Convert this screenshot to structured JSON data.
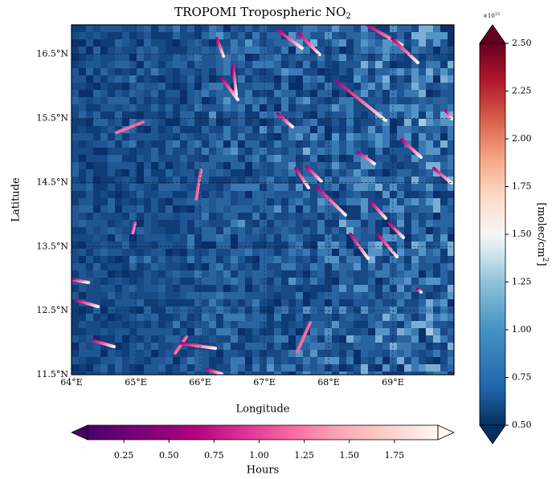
{
  "chart_data": {
    "type": "map",
    "title": {
      "text": "TROPOMI Tropospheric NO",
      "sub": "2"
    },
    "x_label": "Longitude",
    "y_label": "Latitude",
    "xlim": [
      64,
      69.95
    ],
    "ylim": [
      11.5,
      16.96
    ],
    "xticks": [
      {
        "value": 64,
        "label": "64°E"
      },
      {
        "value": 65,
        "label": "65°E"
      },
      {
        "value": 66,
        "label": "66°E"
      },
      {
        "value": 67,
        "label": "67°E"
      },
      {
        "value": 68,
        "label": "68°E"
      },
      {
        "value": 69,
        "label": "69°E"
      }
    ],
    "yticks": [
      {
        "value": 11.5,
        "label": "11.5°N"
      },
      {
        "value": 12.5,
        "label": "12.5°N"
      },
      {
        "value": 13.5,
        "label": "13.5°N"
      },
      {
        "value": 14.5,
        "label": "14.5°N"
      },
      {
        "value": 15.5,
        "label": "15.5°N"
      },
      {
        "value": 16.5,
        "label": "16.5°N"
      }
    ],
    "grid": true,
    "colorbar": {
      "label": "[molec/cm",
      "label_sup": "2",
      "label_end": "]",
      "multiplier": "×10",
      "multiplier_sup": "15",
      "lim": [
        0.5,
        2.5
      ],
      "ticks": [
        {
          "value": 0.5,
          "label": "0.50"
        },
        {
          "value": 0.75,
          "label": "0.75"
        },
        {
          "value": 1.0,
          "label": "1.00"
        },
        {
          "value": 1.25,
          "label": "1.25"
        },
        {
          "value": 1.5,
          "label": "1.50"
        },
        {
          "value": 1.75,
          "label": "1.75"
        },
        {
          "value": 2.0,
          "label": "2.00"
        },
        {
          "value": 2.25,
          "label": "2.25"
        },
        {
          "value": 2.5,
          "label": "2.50"
        }
      ]
    },
    "colorbar2": {
      "label": "Hours",
      "lim": [
        -0.04,
        2.08
      ],
      "ticks": [
        {
          "value": 0.25,
          "label": "0.25"
        },
        {
          "value": 0.5,
          "label": "0.50"
        },
        {
          "value": 0.75,
          "label": "0.75"
        },
        {
          "value": 1.0,
          "label": "1.00"
        },
        {
          "value": 1.25,
          "label": "1.25"
        },
        {
          "value": 1.5,
          "label": "1.50"
        },
        {
          "value": 1.75,
          "label": "1.75"
        }
      ]
    }
  }
}
